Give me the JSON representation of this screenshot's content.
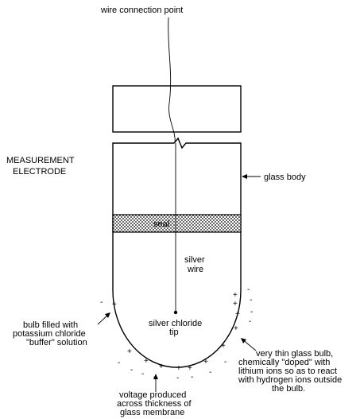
{
  "labels": {
    "wire_connection_point": "wire connection point",
    "measurement_line1": "MEASUREMENT",
    "measurement_line2": "ELECTRODE",
    "glass_body": "glass body",
    "seal": "seal",
    "silver_wire_line1": "silver",
    "silver_wire_line2": "wire",
    "silver_chloride_line1": "silver chloride",
    "silver_chloride_line2": "tip",
    "bulb_fill_line1": "bulb filled with",
    "bulb_fill_line2": "potassium chloride",
    "bulb_fill_line3": "\"buffer\" solution",
    "thin_bulb_line1": "very thin glass bulb,",
    "thin_bulb_line2": "chemically \"doped\" with",
    "thin_bulb_line3": "lithium ions so as to react",
    "thin_bulb_line4": "with hydrogen ions outside",
    "thin_bulb_line5": "the bulb.",
    "voltage_line1": "voltage produced",
    "voltage_line2": "across thickness of",
    "voltage_line3": "glass membrane"
  },
  "signs": {
    "plus": "+",
    "minus": "-"
  }
}
